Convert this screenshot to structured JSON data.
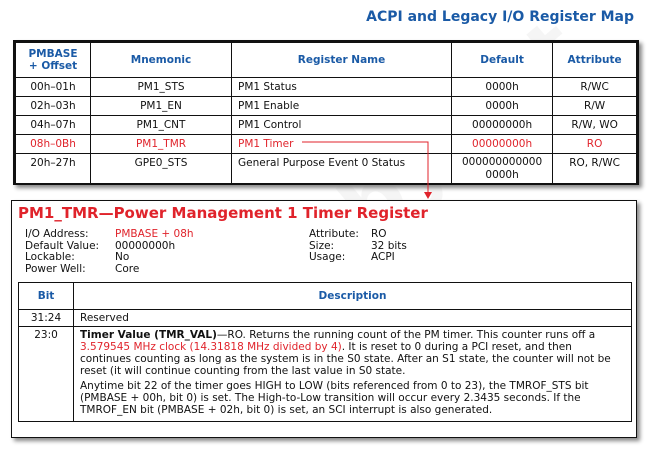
{
  "title": "ACPI and Legacy I/O Register Map",
  "register_map": {
    "headers": [
      "PMBASE\n+ Offset",
      "Mnemonic",
      "Register Name",
      "Default",
      "Attribute"
    ],
    "header_offset_line1": "PMBASE",
    "header_offset_line2": "+ Offset",
    "rows": [
      {
        "offset": "00h–01h",
        "mnemonic": "PM1_STS",
        "name": "PM1 Status",
        "default": "0000h",
        "attribute": "R/WC"
      },
      {
        "offset": "02h–03h",
        "mnemonic": "PM1_EN",
        "name": "PM1 Enable",
        "default": "0000h",
        "attribute": "R/W"
      },
      {
        "offset": "04h–07h",
        "mnemonic": "PM1_CNT",
        "name": "PM1 Control",
        "default": "00000000h",
        "attribute": "R/W, WO"
      },
      {
        "offset": "08h–0Bh",
        "mnemonic": "PM1_TMR",
        "name": "PM1 Timer",
        "default": "00000000h",
        "attribute": "RO"
      },
      {
        "offset": "20h–27h",
        "mnemonic": "GPE0_STS",
        "name": "General Purpose Event 0 Status",
        "default": "000000000000 0000h",
        "attribute": "RO, R/WC"
      }
    ]
  },
  "detail": {
    "heading": "PM1_TMR—Power Management 1 Timer Register",
    "left": [
      {
        "label": "I/O Address:",
        "value": "PMBASE + 08h"
      },
      {
        "label": "Default Value:",
        "value": "00000000h"
      },
      {
        "label": "Lockable:",
        "value": "No"
      },
      {
        "label": "Power Well:",
        "value": "Core"
      }
    ],
    "right": [
      {
        "label": "Attribute:",
        "value": "RO"
      },
      {
        "label": "Size:",
        "value": "32 bits"
      },
      {
        "label": "Usage:",
        "value": "ACPI"
      }
    ],
    "bits_headers": [
      "Bit",
      "Description"
    ],
    "bits": [
      {
        "bit": "31:24",
        "desc": "Reserved"
      },
      {
        "bit": "23:0",
        "field": "Timer Value (TMR_VAL)",
        "desc_a": "—RO. Returns the running count of the PM timer. This counter runs off a ",
        "desc_red": "3.579545 MHz clock (14.31818 MHz divided by 4)",
        "desc_b": ". It is reset to 0 during a PCI reset, and then continues counting as long as the system is in the S0 state. After an S1 state, the counter will not be reset (it will continue counting from the last value in S0 state.",
        "desc_p2": "Anytime bit 22 of the timer goes HIGH to LOW (bits referenced from 0 to 23), the TMROF_STS bit (PMBASE + 00h, bit 0) is set. The High-to-Low transition will occur every 2.3435 seconds. If the TMROF_EN bit (PMBASE + 02h, bit 0) is set, an SCI interrupt is also generated."
      }
    ]
  },
  "colors": {
    "accent_blue": "#1a5aa6",
    "highlight_red": "#e0232b"
  }
}
